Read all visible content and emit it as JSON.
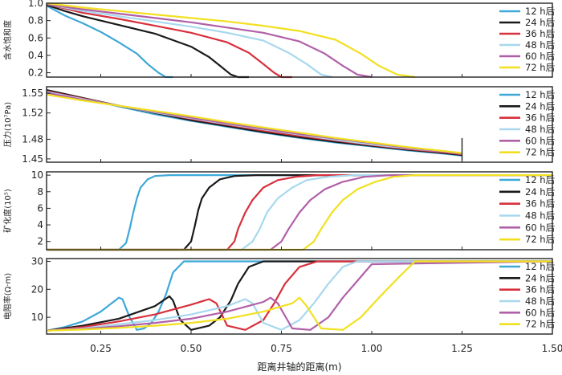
{
  "chart_data": {
    "type": "line",
    "x_title": "距离井轴的距离(m)",
    "x_ticks": [
      "0.25",
      "0.50",
      "0.75",
      "1.00",
      "1.25",
      "1.50"
    ],
    "x_tick_values": [
      0.25,
      0.5,
      0.75,
      1.0,
      1.25,
      1.5
    ],
    "xlim": [
      0.1,
      1.5
    ],
    "series_names": [
      "12 h后",
      "24 h后",
      "36 h后",
      "48 h后",
      "60 h后",
      "72 h后"
    ],
    "series_colors": [
      "#3ea8d8",
      "#1a1a1a",
      "#d8303c",
      "#a8d8ee",
      "#b060a8",
      "#f2e020"
    ],
    "panels": [
      {
        "id": "saturation",
        "ylabel": "含水饱和度",
        "ylim": [
          0.15,
          1.0
        ],
        "yticks": [
          "1.0",
          "0.8",
          "0.6",
          "0.4",
          "0.2"
        ],
        "ytick_values": [
          1.0,
          0.8,
          0.6,
          0.4,
          0.2
        ],
        "series": [
          {
            "name": "12 h后",
            "x": [
              0.1,
              0.15,
              0.2,
              0.25,
              0.3,
              0.35,
              0.38,
              0.41,
              0.43,
              0.45
            ],
            "y": [
              0.97,
              0.86,
              0.77,
              0.67,
              0.55,
              0.42,
              0.3,
              0.2,
              0.15,
              0.15
            ]
          },
          {
            "name": "24 h后",
            "x": [
              0.1,
              0.15,
              0.2,
              0.3,
              0.4,
              0.5,
              0.55,
              0.58,
              0.61,
              0.63,
              0.66
            ],
            "y": [
              0.98,
              0.91,
              0.85,
              0.75,
              0.65,
              0.5,
              0.38,
              0.28,
              0.18,
              0.15,
              0.15
            ]
          },
          {
            "name": "36 h后",
            "x": [
              0.1,
              0.2,
              0.3,
              0.4,
              0.5,
              0.6,
              0.66,
              0.7,
              0.73,
              0.75,
              0.78
            ],
            "y": [
              0.99,
              0.89,
              0.82,
              0.74,
              0.66,
              0.55,
              0.43,
              0.3,
              0.2,
              0.15,
              0.15
            ]
          },
          {
            "name": "48 h后",
            "x": [
              0.1,
              0.2,
              0.3,
              0.4,
              0.5,
              0.6,
              0.7,
              0.77,
              0.82,
              0.86,
              0.89
            ],
            "y": [
              0.99,
              0.91,
              0.85,
              0.79,
              0.73,
              0.66,
              0.57,
              0.43,
              0.3,
              0.18,
              0.15
            ]
          },
          {
            "name": "60 h后",
            "x": [
              0.1,
              0.2,
              0.3,
              0.4,
              0.5,
              0.6,
              0.7,
              0.8,
              0.87,
              0.92,
              0.96,
              1.0
            ],
            "y": [
              0.99,
              0.93,
              0.88,
              0.83,
              0.78,
              0.72,
              0.66,
              0.56,
              0.42,
              0.28,
              0.18,
              0.15
            ]
          },
          {
            "name": "72 h后",
            "x": [
              0.1,
              0.2,
              0.3,
              0.4,
              0.5,
              0.6,
              0.7,
              0.8,
              0.9,
              0.97,
              1.02,
              1.07,
              1.12
            ],
            "y": [
              1.0,
              0.95,
              0.91,
              0.87,
              0.83,
              0.79,
              0.74,
              0.68,
              0.58,
              0.42,
              0.28,
              0.18,
              0.15
            ]
          }
        ]
      },
      {
        "id": "pressure",
        "ylabel": "压力(10⁷Pa)",
        "ylim": [
          1.445,
          1.56
        ],
        "yticks": [
          "1.55",
          "1.52",
          "1.48",
          "1.45"
        ],
        "ytick_values": [
          1.55,
          1.52,
          1.48,
          1.45
        ],
        "series": [
          {
            "name": "12 h后",
            "x": [
              0.1,
              0.2,
              0.3,
              0.4,
              0.5,
              0.6,
              0.7,
              0.8,
              0.9,
              1.0,
              1.1,
              1.2,
              1.25
            ],
            "y": [
              1.554,
              1.542,
              1.53,
              1.518,
              1.508,
              1.499,
              1.49,
              1.482,
              1.475,
              1.469,
              1.463,
              1.458,
              1.455
            ]
          },
          {
            "name": "24 h后",
            "x": [
              0.1,
              0.2,
              0.3,
              0.4,
              0.5,
              0.6,
              0.7,
              0.8,
              0.9,
              1.0,
              1.1,
              1.2,
              1.25
            ],
            "y": [
              1.555,
              1.543,
              1.531,
              1.52,
              1.509,
              1.5,
              1.491,
              1.483,
              1.476,
              1.47,
              1.464,
              1.459,
              1.456
            ]
          },
          {
            "name": "36 h后",
            "x": [
              0.1,
              0.2,
              0.3,
              0.4,
              0.5,
              0.6,
              0.7,
              0.8,
              0.9,
              1.0,
              1.1,
              1.2,
              1.25
            ],
            "y": [
              1.553,
              1.542,
              1.531,
              1.521,
              1.511,
              1.502,
              1.493,
              1.485,
              1.478,
              1.471,
              1.465,
              1.46,
              1.457
            ]
          },
          {
            "name": "48 h后",
            "x": [
              0.1,
              0.2,
              0.3,
              0.4,
              0.5,
              0.6,
              0.7,
              0.8,
              0.9,
              1.0,
              1.1,
              1.2,
              1.25
            ],
            "y": [
              1.552,
              1.541,
              1.531,
              1.521,
              1.512,
              1.503,
              1.495,
              1.487,
              1.479,
              1.472,
              1.466,
              1.461,
              1.458
            ]
          },
          {
            "name": "60 h后",
            "x": [
              0.1,
              0.2,
              0.3,
              0.4,
              0.5,
              0.6,
              0.7,
              0.8,
              0.9,
              1.0,
              1.1,
              1.2,
              1.25
            ],
            "y": [
              1.551,
              1.54,
              1.531,
              1.522,
              1.513,
              1.504,
              1.496,
              1.488,
              1.481,
              1.474,
              1.467,
              1.461,
              1.458
            ]
          },
          {
            "name": "72 h后",
            "x": [
              0.1,
              0.2,
              0.3,
              0.4,
              0.5,
              0.6,
              0.7,
              0.8,
              0.9,
              1.0,
              1.1,
              1.2,
              1.25
            ],
            "y": [
              1.548,
              1.539,
              1.531,
              1.523,
              1.515,
              1.506,
              1.498,
              1.49,
              1.482,
              1.475,
              1.468,
              1.462,
              1.459
            ]
          }
        ]
      },
      {
        "id": "salinity",
        "ylabel": "矿化度(10⁵)",
        "ylim": [
          1,
          10.4
        ],
        "yticks": [
          "10",
          "8",
          "6",
          "4",
          "2"
        ],
        "ytick_values": [
          10,
          8,
          6,
          4,
          2
        ],
        "series": [
          {
            "name": "12 h后",
            "x": [
              0.1,
              0.3,
              0.32,
              0.33,
              0.34,
              0.35,
              0.36,
              0.38,
              0.4,
              0.44,
              0.5,
              1.5
            ],
            "y": [
              1,
              1,
              1.8,
              3.5,
              5.5,
              7.2,
              8.5,
              9.5,
              9.9,
              10,
              10,
              10
            ]
          },
          {
            "name": "24 h后",
            "x": [
              0.1,
              0.48,
              0.5,
              0.51,
              0.52,
              0.53,
              0.55,
              0.58,
              0.62,
              0.68,
              1.5
            ],
            "y": [
              1,
              1,
              2,
              3.8,
              5.8,
              7.2,
              8.5,
              9.5,
              9.9,
              10,
              10
            ]
          },
          {
            "name": "36 h后",
            "x": [
              0.1,
              0.6,
              0.62,
              0.63,
              0.65,
              0.67,
              0.7,
              0.74,
              0.79,
              0.85,
              1.5
            ],
            "y": [
              1,
              1,
              2,
              3.5,
              5.5,
              7,
              8.5,
              9.4,
              9.8,
              10,
              10
            ]
          },
          {
            "name": "48 h后",
            "x": [
              0.1,
              0.64,
              0.67,
              0.69,
              0.71,
              0.74,
              0.78,
              0.82,
              0.88,
              0.95,
              1.5
            ],
            "y": [
              1,
              1,
              2,
              3.5,
              5.5,
              7.2,
              8.5,
              9.4,
              9.8,
              10,
              10
            ]
          },
          {
            "name": "60 h后",
            "x": [
              0.1,
              0.72,
              0.75,
              0.77,
              0.8,
              0.83,
              0.87,
              0.92,
              0.98,
              1.05,
              1.5
            ],
            "y": [
              1,
              1,
              2,
              3.5,
              5.5,
              7,
              8.3,
              9.2,
              9.8,
              10,
              10
            ]
          },
          {
            "name": "72 h后",
            "x": [
              0.1,
              0.81,
              0.84,
              0.86,
              0.89,
              0.92,
              0.96,
              1.01,
              1.06,
              1.12,
              1.5
            ],
            "y": [
              1,
              1,
              2,
              3.5,
              5.5,
              7,
              8.3,
              9.2,
              9.8,
              10,
              10
            ]
          }
        ]
      },
      {
        "id": "resistivity",
        "ylabel": "电阻率(Ω·m)",
        "ylim": [
          4,
          31
        ],
        "yticks": [
          "30",
          "20",
          "10"
        ],
        "ytick_values": [
          30,
          20,
          10
        ],
        "series": [
          {
            "name": "12 h后",
            "x": [
              0.1,
              0.15,
              0.2,
              0.25,
              0.3,
              0.31,
              0.33,
              0.35,
              0.37,
              0.39,
              0.41,
              0.43,
              0.45,
              0.48,
              0.5,
              1.5
            ],
            "y": [
              5.2,
              6.5,
              8.5,
              12,
              17,
              16.5,
              10,
              5.5,
              6,
              8,
              12,
              18,
              26,
              30,
              30,
              30
            ]
          },
          {
            "name": "24 h后",
            "x": [
              0.1,
              0.2,
              0.3,
              0.4,
              0.44,
              0.45,
              0.47,
              0.5,
              0.55,
              0.58,
              0.61,
              0.63,
              0.66,
              0.7,
              1.5
            ],
            "y": [
              5.2,
              7,
              9.5,
              14,
              17.5,
              16,
              9,
              5.5,
              7,
              10,
              16,
              22,
              28,
              30,
              30
            ]
          },
          {
            "name": "36 h后",
            "x": [
              0.1,
              0.2,
              0.3,
              0.4,
              0.5,
              0.55,
              0.57,
              0.6,
              0.65,
              0.7,
              0.73,
              0.76,
              0.8,
              0.85,
              1.5
            ],
            "y": [
              5.2,
              6.5,
              8.5,
              11,
              14.5,
              16.5,
              15,
              7,
              5.5,
              9,
              15,
              22,
              28,
              30,
              30
            ]
          },
          {
            "name": "48 h后",
            "x": [
              0.1,
              0.2,
              0.3,
              0.4,
              0.5,
              0.6,
              0.65,
              0.67,
              0.7,
              0.75,
              0.8,
              0.84,
              0.88,
              0.92,
              0.96,
              1.5
            ],
            "y": [
              5.2,
              6,
              7.5,
              9,
              11,
              14,
              16.5,
              15,
              8,
              5.5,
              9,
              15,
              22,
              28,
              30,
              30
            ]
          },
          {
            "name": "60 h后",
            "x": [
              0.1,
              0.2,
              0.3,
              0.4,
              0.5,
              0.6,
              0.7,
              0.72,
              0.74,
              0.78,
              0.83,
              0.88,
              0.92,
              0.96,
              1.0,
              1.5
            ],
            "y": [
              5.2,
              5.8,
              6.8,
              8,
              9.5,
              12,
              15.5,
              17,
              15,
              6,
              5.5,
              10,
              17,
              23,
              29,
              30
            ]
          },
          {
            "name": "72 h后",
            "x": [
              0.1,
              0.2,
              0.3,
              0.4,
              0.5,
              0.6,
              0.7,
              0.78,
              0.8,
              0.82,
              0.86,
              0.92,
              0.97,
              1.02,
              1.08,
              1.12,
              1.5
            ],
            "y": [
              5.2,
              5.6,
              6.2,
              7,
              8,
              9.5,
              12,
              15,
              17,
              14,
              6,
              5.5,
              10,
              17,
              25,
              30,
              30
            ]
          }
        ]
      }
    ]
  }
}
